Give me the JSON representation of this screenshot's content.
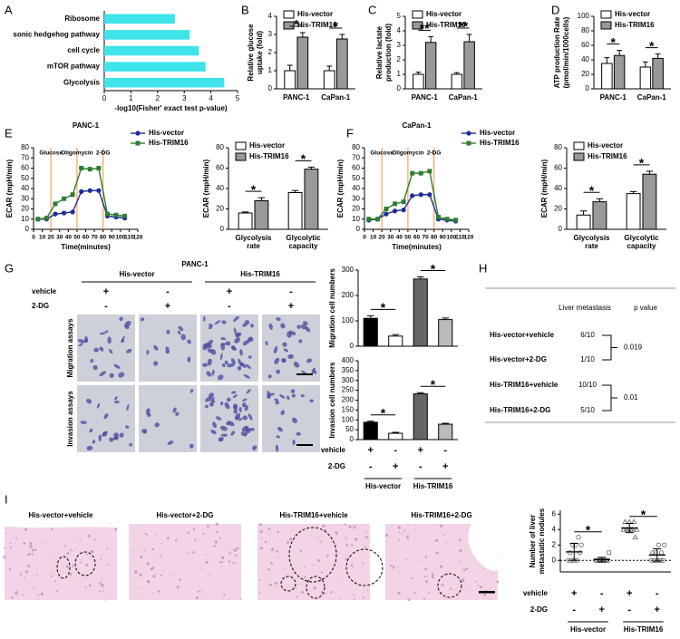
{
  "panel_labels": [
    "A",
    "B",
    "C",
    "D",
    "E",
    "F",
    "G",
    "H",
    "I"
  ],
  "chart_data": [
    {
      "type": "hbar",
      "categories": [
        "Ribosome",
        "sonic hedgehog pathway",
        "cell cycle",
        "mTOR pathway",
        "Glycolysis"
      ],
      "values": [
        2.65,
        3.2,
        3.55,
        3.8,
        4.5
      ],
      "color": "#3fe3ea",
      "xlim": [
        0,
        5
      ],
      "xticks": [
        0,
        1,
        2,
        3,
        4,
        5
      ],
      "xlabel": "-log10(Fisher' exact test p-value)"
    },
    {
      "type": "bar",
      "categories": [
        "PANC-1",
        "CaPan-1"
      ],
      "series": [
        {
          "name": "His-vector",
          "color": "#ffffff",
          "values": [
            1,
            1
          ],
          "errors": [
            0.3,
            0.25
          ]
        },
        {
          "name": "His-TRIM16",
          "color": "#999999",
          "values": [
            2.85,
            2.75
          ],
          "errors": [
            0.25,
            0.25
          ]
        }
      ],
      "ylim": [
        0,
        4
      ],
      "yticks": [
        0,
        1,
        2,
        3,
        4
      ],
      "ylabel": [
        "Relative glucose",
        "uptake (fold)"
      ],
      "annotations": [
        "*",
        "*"
      ]
    },
    {
      "type": "bar",
      "categories": [
        "PANC-1",
        "CaPan-1"
      ],
      "series": [
        {
          "name": "His-vector",
          "color": "#ffffff",
          "values": [
            1,
            1
          ],
          "errors": [
            0.15,
            0.12
          ]
        },
        {
          "name": "His-TRIM16",
          "color": "#999999",
          "values": [
            3.2,
            3.25
          ],
          "errors": [
            0.4,
            0.5
          ]
        }
      ],
      "ylim": [
        0,
        5
      ],
      "yticks": [
        0,
        1,
        2,
        3,
        4,
        5
      ],
      "ylabel": [
        "Relative  lactate",
        "production (fold)"
      ],
      "annotations": [
        "**",
        "**"
      ]
    },
    {
      "type": "bar",
      "categories": [
        "PANC-1",
        "CaPan-1"
      ],
      "series": [
        {
          "name": "His-vector",
          "color": "#ffffff",
          "values": [
            35,
            30
          ],
          "errors": [
            8,
            7
          ]
        },
        {
          "name": "His-TRIM16",
          "color": "#999999",
          "values": [
            46,
            42
          ],
          "errors": [
            7,
            6
          ]
        }
      ],
      "ylim": [
        0,
        100
      ],
      "yticks": [
        0,
        20,
        40,
        60,
        80,
        100
      ],
      "ylabel": [
        "ATP production Rate",
        "(pmol/min/1000cells)"
      ],
      "annotations": [
        "*",
        "*"
      ]
    },
    {
      "type": "line",
      "title": "PANC-1",
      "x": [
        5,
        15,
        25,
        35,
        45,
        55,
        65,
        75,
        85,
        95,
        105
      ],
      "series": [
        {
          "name": "His-vector",
          "color": "#1f2a9c",
          "values": [
            10,
            10,
            15,
            16,
            17,
            37,
            38,
            38,
            13,
            12,
            11
          ]
        },
        {
          "name": "His-TRIM16",
          "color": "#2e7d32",
          "values": [
            10,
            11,
            25,
            30,
            34,
            60,
            59,
            60,
            15,
            14,
            13
          ]
        }
      ],
      "xlim": [
        0,
        120
      ],
      "xticks": [
        0,
        10,
        20,
        30,
        40,
        50,
        60,
        70,
        80,
        90,
        100,
        110,
        120
      ],
      "ylim": [
        0,
        80
      ],
      "yticks": [
        0,
        10,
        20,
        30,
        40,
        50,
        60,
        70,
        80
      ],
      "xlabel": "Time(minutes)",
      "ylabel": "ECAR (mpH/min)",
      "events": [
        {
          "label": "Glucose",
          "x": 20
        },
        {
          "label": "Oligomycin",
          "x": 50
        },
        {
          "label": "2-DG",
          "x": 80
        }
      ]
    },
    {
      "type": "bar",
      "categories": [
        [
          "Glycolysis",
          "rate"
        ],
        [
          "Glycolytic",
          "capacity"
        ]
      ],
      "series": [
        {
          "name": "His-vector",
          "color": "#ffffff",
          "values": [
            16,
            36
          ],
          "errors": [
            1,
            2
          ]
        },
        {
          "name": "His-TRIM16",
          "color": "#999999",
          "values": [
            28,
            59
          ],
          "errors": [
            3,
            2
          ]
        }
      ],
      "ylim": [
        0,
        80
      ],
      "yticks": [
        0,
        20,
        40,
        60,
        80
      ],
      "ylabel": "ECAR (mpH/min)",
      "annotations": [
        "*",
        "*"
      ]
    },
    {
      "type": "line",
      "title": "CaPan-1",
      "x": [
        5,
        15,
        25,
        35,
        45,
        55,
        65,
        75,
        85,
        95,
        105
      ],
      "series": [
        {
          "name": "His-vector",
          "color": "#1f2a9c",
          "values": [
            9,
            10,
            15,
            18,
            19,
            33,
            34,
            34,
            10,
            9,
            8
          ]
        },
        {
          "name": "His-TRIM16",
          "color": "#2e7d32",
          "values": [
            10,
            10,
            20,
            25,
            27,
            55,
            55,
            57,
            12,
            10,
            9
          ]
        }
      ],
      "xlim": [
        0,
        120
      ],
      "xticks": [
        0,
        10,
        20,
        30,
        40,
        50,
        60,
        70,
        80,
        90,
        100,
        110,
        120
      ],
      "ylim": [
        0,
        80
      ],
      "yticks": [
        0,
        10,
        20,
        30,
        40,
        50,
        60,
        70,
        80
      ],
      "xlabel": "Time(minutes)",
      "ylabel": "ECAR (mpH/min)",
      "events": [
        {
          "label": "Glucose",
          "x": 20
        },
        {
          "label": "Oligomycin",
          "x": 50
        },
        {
          "label": "2-DG",
          "x": 80
        }
      ]
    },
    {
      "type": "bar",
      "categories": [
        [
          "Glycolysis",
          "rate"
        ],
        [
          "Glycolytic",
          "capacity"
        ]
      ],
      "series": [
        {
          "name": "His-vector",
          "color": "#ffffff",
          "values": [
            14,
            35
          ],
          "errors": [
            4,
            2
          ]
        },
        {
          "name": "His-TRIM16",
          "color": "#999999",
          "values": [
            27,
            54
          ],
          "errors": [
            3,
            3
          ]
        }
      ],
      "ylim": [
        0,
        80
      ],
      "yticks": [
        0,
        20,
        40,
        60,
        80
      ],
      "ylabel": "ECAR (mpH/min)",
      "annotations": [
        "*",
        "*"
      ]
    },
    {
      "type": "bar",
      "values": [
        110,
        40,
        265,
        105
      ],
      "errors": [
        10,
        6,
        8,
        6
      ],
      "colors": [
        "#000000",
        "#ffffff",
        "#666666",
        "#bbbbbb"
      ],
      "ylim": [
        0,
        300
      ],
      "yticks": [
        0,
        100,
        200,
        300
      ],
      "ylabel": "Migration cell numbers",
      "annotations": [
        "*",
        "*"
      ]
    },
    {
      "type": "bar",
      "values": [
        88,
        32,
        232,
        78
      ],
      "errors": [
        5,
        5,
        6,
        5
      ],
      "colors": [
        "#000000",
        "#ffffff",
        "#666666",
        "#bbbbbb"
      ],
      "ylim": [
        0,
        400
      ],
      "yticks": [
        0,
        50,
        100,
        150,
        200,
        250,
        300,
        350,
        400
      ],
      "ylabel": "Invasion cell numbers",
      "annotations": [
        "*",
        "*"
      ],
      "conditions": {
        "rows": [
          {
            "label": "vehicle",
            "signs": [
              "+",
              "-",
              "+",
              "-"
            ]
          },
          {
            "label": "2-DG",
            "signs": [
              "-",
              "+",
              "-",
              "+"
            ]
          }
        ],
        "groups": [
          "His-vector",
          "His-TRIM16"
        ]
      }
    },
    {
      "type": "dot",
      "groups": [
        [
          0,
          0,
          0,
          0,
          1,
          1,
          2,
          2,
          3,
          2
        ],
        [
          0,
          0,
          0,
          0,
          0,
          0,
          0,
          0,
          0,
          1
        ],
        [
          4,
          4,
          5,
          4,
          3,
          5,
          4,
          4,
          5,
          4
        ],
        [
          0,
          0,
          0,
          0,
          0,
          1,
          1,
          2,
          1,
          2
        ]
      ],
      "means": [
        1.1,
        0.1,
        4.2,
        0.7
      ],
      "sds": [
        1.1,
        0.3,
        0.6,
        0.8
      ],
      "ylim": [
        -1.5,
        6.5
      ],
      "yticks": [
        0,
        2,
        4,
        6
      ],
      "ylabel": [
        "Number of liver",
        "metastatic nodules"
      ],
      "annotations": [
        "*",
        "*"
      ],
      "conditions": {
        "rows": [
          {
            "label": "vehicle",
            "signs": [
              "+",
              "-",
              "+",
              "-"
            ]
          },
          {
            "label": "2-DG",
            "signs": [
              "-",
              "+",
              "-",
              "+"
            ]
          }
        ],
        "groups": [
          "His-vector",
          "His-TRIM16"
        ]
      }
    }
  ],
  "panel_g": {
    "title": "PANC-1",
    "groups": [
      "His-vector",
      "His-TRIM16"
    ],
    "rows": [
      {
        "label": "vehicle",
        "signs": [
          "+",
          "-",
          "+",
          "-"
        ]
      },
      {
        "label": "2-DG",
        "signs": [
          "-",
          "+",
          "-",
          "+"
        ]
      }
    ],
    "assays": [
      "Migration assays",
      "Invasion assays"
    ]
  },
  "panel_h": {
    "headers": [
      "Liver metastasis",
      "p value"
    ],
    "rows": [
      {
        "label": "His-vector+vehicle",
        "value": "6/10"
      },
      {
        "label": "His-vector+2-DG",
        "value": "1/10"
      },
      {
        "label": "His-TRIM16+vehicle",
        "value": "10/10"
      },
      {
        "label": "His-TRIM16+2-DG",
        "value": "5/10"
      }
    ],
    "p_values": [
      "0.019",
      "0.01"
    ]
  },
  "panel_i": {
    "titles": [
      "His-vector+vehicle",
      "His-vector+2-DG",
      "His-TRIM16+vehicle",
      "His-TRIM16+2-DG"
    ]
  }
}
